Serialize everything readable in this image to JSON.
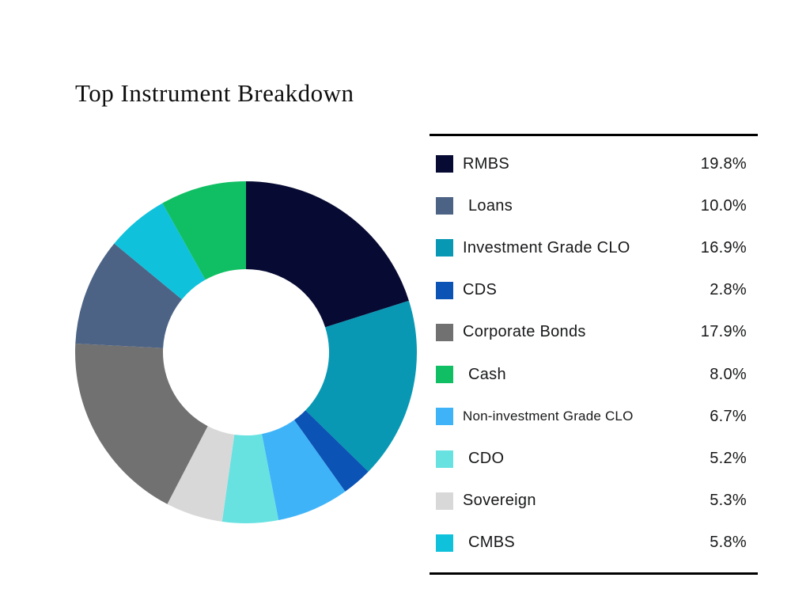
{
  "page": {
    "background": "#ffffff",
    "legend_rule_color": "#000000"
  },
  "chart_data": {
    "type": "pie",
    "variant": "donut",
    "title": "Top Instrument Breakdown",
    "legend_position": "right",
    "inner_radius_ratio": 0.486,
    "start_angle_deg": 0,
    "clockwise": true,
    "items": [
      {
        "label": "RMBS",
        "value": 19.8,
        "display": "19.8%",
        "color": "#070b33"
      },
      {
        "label": "Loans",
        "value": 10.0,
        "display": "10.0%",
        "color": "#4c6385"
      },
      {
        "label": "Investment Grade CLO",
        "value": 16.9,
        "display": "16.9%",
        "color": "#0898b4"
      },
      {
        "label": "CDS",
        "value": 2.8,
        "display": "2.8%",
        "color": "#0b53b4"
      },
      {
        "label": "Corporate Bonds",
        "value": 17.9,
        "display": "17.9%",
        "color": "#717171"
      },
      {
        "label": "Cash",
        "value": 8.0,
        "display": "8.0%",
        "color": "#10bf63"
      },
      {
        "label": "Non-investment Grade CLO",
        "value": 6.7,
        "display": "6.7%",
        "color": "#3fb3f8"
      },
      {
        "label": "CDO",
        "value": 5.2,
        "display": "5.2%",
        "color": "#68e1e1"
      },
      {
        "label": "Sovereign",
        "value": 5.3,
        "display": "5.3%",
        "color": "#d8d8d8"
      },
      {
        "label": "CMBS",
        "value": 5.8,
        "display": "5.8%",
        "color": "#10c1dc"
      }
    ],
    "pie_order_clockwise_from_top": [
      "RMBS",
      "Investment Grade CLO",
      "CDS",
      "Non-investment Grade CLO",
      "CDO",
      "Sovereign",
      "Corporate Bonds",
      "Loans",
      "CMBS",
      "Cash"
    ]
  }
}
